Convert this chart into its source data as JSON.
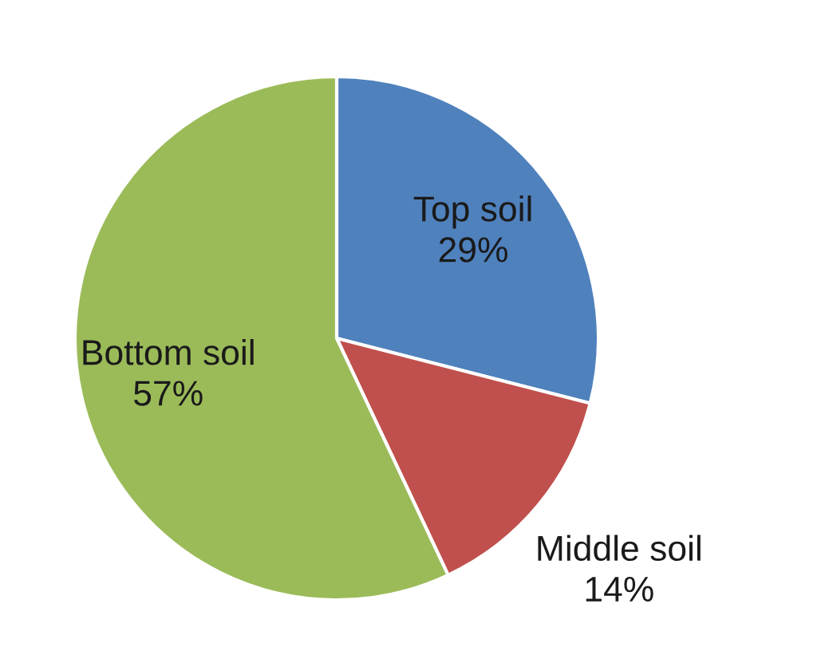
{
  "chart_data": {
    "type": "pie",
    "categories": [
      "Top soil",
      "Middle soil",
      "Bottom soil"
    ],
    "values": [
      29,
      14,
      57
    ],
    "value_labels": [
      "29%",
      "14%",
      "57%"
    ],
    "colors": [
      "#4f81bd",
      "#c0504d",
      "#9bbb59"
    ],
    "legend": false
  }
}
